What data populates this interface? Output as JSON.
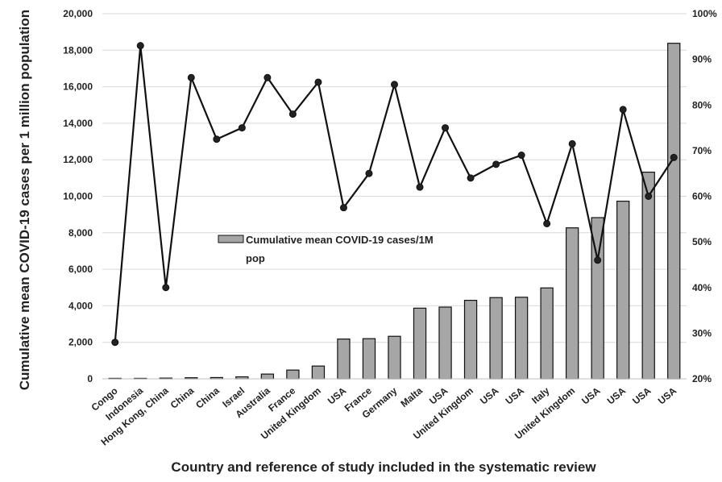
{
  "chart_data": {
    "type": "bar",
    "title": "",
    "xlabel": "Country and reference of study included in the systematic review",
    "ylabel": "Cumulative mean COVID-19 cases per 1 million population",
    "ylim": [
      0,
      20000
    ],
    "y_ticks": [
      "0",
      "2,000",
      "4,000",
      "6,000",
      "8,000",
      "10,000",
      "12,000",
      "14,000",
      "16,000",
      "18,000",
      "20,000"
    ],
    "y2lim": [
      20,
      100
    ],
    "y2_ticks": [
      "20%",
      "30%",
      "40%",
      "50%",
      "60%",
      "70%",
      "80%",
      "90%",
      "100%"
    ],
    "grid": true,
    "legend": {
      "line1": "Cumulative mean COVID-19 cases/1M",
      "line2": "pop",
      "placement": "center"
    },
    "categories": [
      "Congo",
      "Indonesia",
      "Hong Kong, China",
      "China",
      "China",
      "Israel",
      "Australia",
      "France",
      "United Kingdom",
      "USA",
      "France",
      "Germany",
      "Malta",
      "USA",
      "United Kingdom",
      "USA",
      "USA",
      "Italy",
      "United Kingdom",
      "USA",
      "USA",
      "USA",
      "USA"
    ],
    "series": [
      {
        "name": "Cumulative mean COVID-19 cases/1M pop",
        "type": "bar",
        "axis": "left",
        "values": [
          5,
          10,
          40,
          60,
          70,
          110,
          260,
          480,
          700,
          2180,
          2200,
          2330,
          3870,
          3930,
          4300,
          4450,
          4470,
          4980,
          8270,
          8830,
          9730,
          11320,
          18380
        ]
      },
      {
        "type": "line",
        "axis": "right",
        "values": [
          28,
          93,
          40,
          86,
          72.5,
          75,
          86,
          78,
          85,
          57.5,
          65,
          84.5,
          62,
          75,
          64,
          67,
          69,
          54,
          71.5,
          46,
          79,
          60,
          68.5
        ]
      }
    ]
  }
}
